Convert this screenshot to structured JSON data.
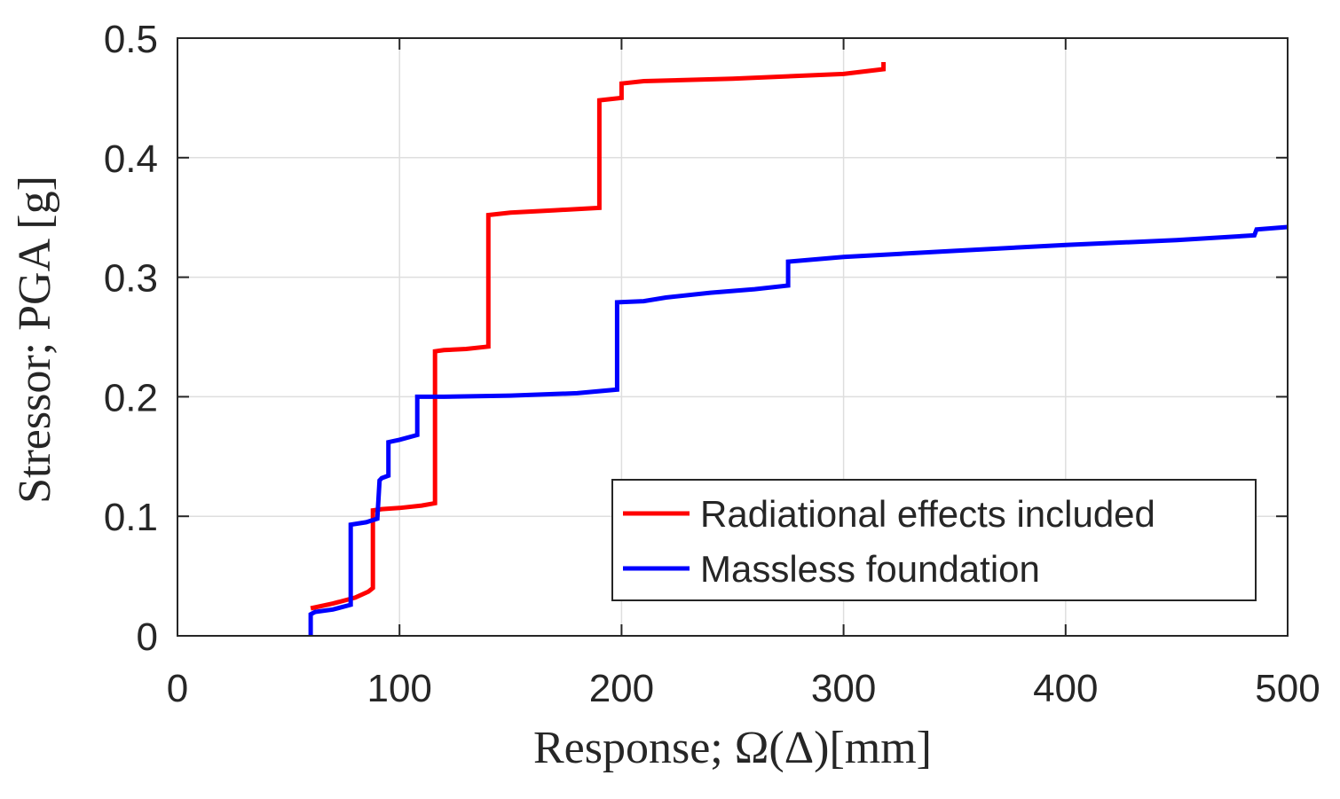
{
  "chart_data": {
    "type": "line",
    "title": "",
    "xlabel": "Response; Ω(Δ)[mm]",
    "ylabel": "Stressor; PGA [g]",
    "xlim": [
      0,
      500
    ],
    "ylim": [
      0,
      0.5
    ],
    "xticks": [
      0,
      100,
      200,
      300,
      400,
      500
    ],
    "xtick_labels": [
      "0",
      "100",
      "200",
      "300",
      "400",
      "500"
    ],
    "yticks": [
      0,
      0.1,
      0.2,
      0.3,
      0.4,
      0.5
    ],
    "ytick_labels": [
      "0",
      "0.1",
      "0.2",
      "0.3",
      "0.4",
      "0.5"
    ],
    "grid": true,
    "legend_position": "bottom-right",
    "series": [
      {
        "name": "Radiational effects included",
        "color": "#ff0000",
        "x": [
          60,
          70,
          80,
          86,
          88,
          88,
          92,
          100,
          110,
          116,
          116,
          120,
          130,
          140,
          140,
          150,
          170,
          190,
          190,
          200,
          200,
          210,
          250,
          300,
          318,
          318
        ],
        "y": [
          0.023,
          0.027,
          0.032,
          0.037,
          0.04,
          0.105,
          0.106,
          0.107,
          0.109,
          0.111,
          0.238,
          0.239,
          0.24,
          0.242,
          0.352,
          0.354,
          0.356,
          0.358,
          0.448,
          0.45,
          0.462,
          0.464,
          0.466,
          0.47,
          0.474,
          0.48
        ]
      },
      {
        "name": "Massless foundation",
        "color": "#0000ff",
        "x": [
          60,
          60,
          62,
          70,
          78,
          78,
          85,
          90,
          91,
          92,
          95,
          95,
          100,
          108,
          108,
          120,
          150,
          180,
          198,
          198,
          210,
          220,
          240,
          260,
          275,
          275,
          300,
          350,
          400,
          450,
          485,
          486,
          500
        ],
        "y": [
          0,
          0.018,
          0.02,
          0.022,
          0.026,
          0.093,
          0.095,
          0.098,
          0.13,
          0.132,
          0.134,
          0.162,
          0.164,
          0.168,
          0.2,
          0.2,
          0.201,
          0.203,
          0.206,
          0.279,
          0.28,
          0.283,
          0.287,
          0.29,
          0.293,
          0.313,
          0.317,
          0.322,
          0.327,
          0.331,
          0.335,
          0.34,
          0.342
        ]
      }
    ]
  }
}
